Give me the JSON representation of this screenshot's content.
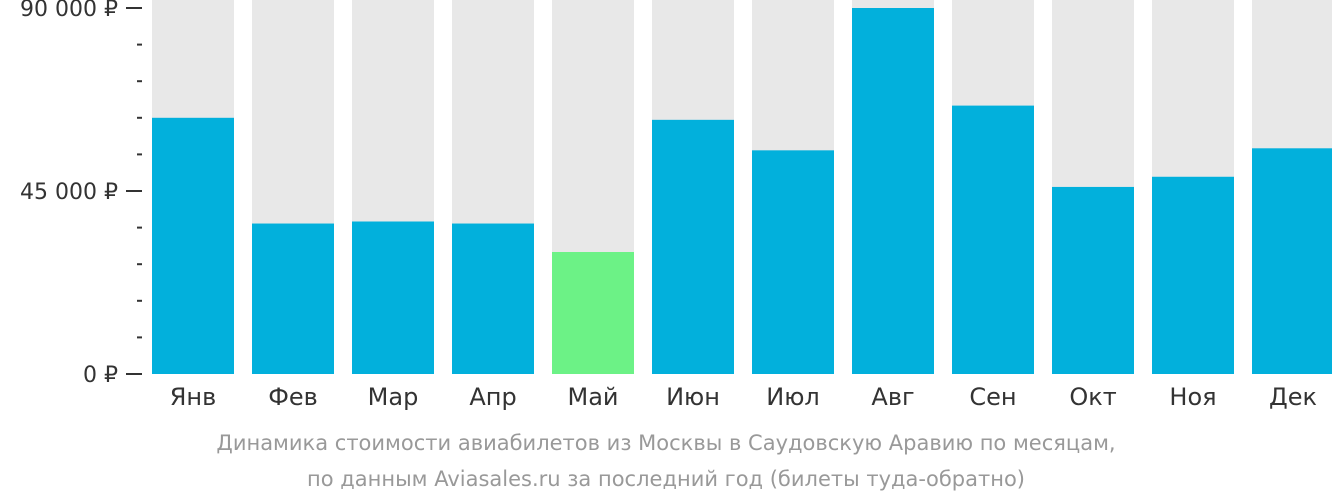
{
  "chart_data": {
    "type": "bar",
    "categories": [
      "Янв",
      "Фев",
      "Мар",
      "Апр",
      "Май",
      "Июн",
      "Июл",
      "Авг",
      "Сен",
      "Окт",
      "Ноя",
      "Дек"
    ],
    "values": [
      63000,
      37000,
      37500,
      37000,
      30000,
      62500,
      55000,
      90000,
      66000,
      46000,
      48500,
      55500
    ],
    "highlight_index": 4,
    "ylim": [
      0,
      92000
    ],
    "yticks": [
      {
        "value": 0,
        "label": "0 ₽"
      },
      {
        "value": 45000,
        "label": "45 000 ₽"
      },
      {
        "value": 90000,
        "label": "90 000 ₽"
      }
    ],
    "minor_tick_step": 9000,
    "grid": false,
    "colors": {
      "bar": "#02B0DC",
      "highlight": "#6CF286",
      "background_bar": "#E8E8E8",
      "axis": "#333333",
      "caption": "#999999"
    }
  },
  "caption": {
    "line1": "Динамика стоимости авиабилетов из Москвы в Саудовскую Аравию по месяцам,",
    "line2": "по данным Aviasales.ru за последний год (билеты туда-обратно)"
  }
}
